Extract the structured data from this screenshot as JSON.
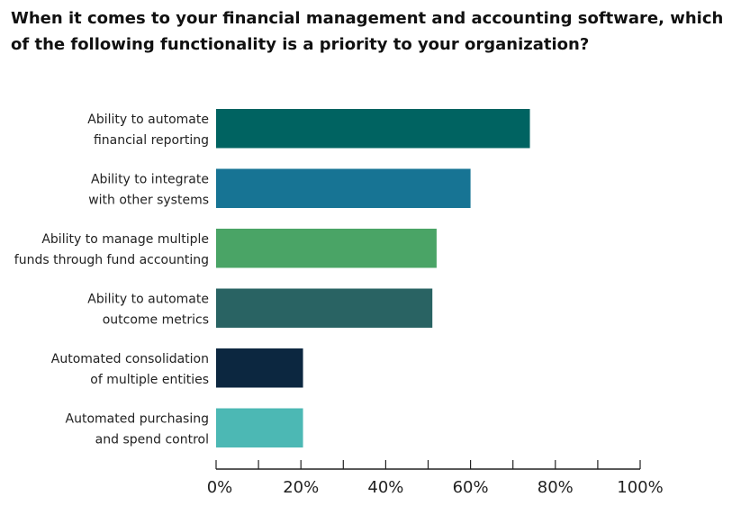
{
  "chart_data": {
    "type": "bar",
    "orientation": "horizontal",
    "title": "When it comes to your financial management and accounting software, which of the following functionality is a priority to your organization?",
    "categories": [
      [
        "Ability to automate",
        "financial reporting"
      ],
      [
        "Ability to integrate",
        "with other systems"
      ],
      [
        "Ability to manage multiple",
        "funds through fund accounting"
      ],
      [
        "Ability to automate",
        "outcome metrics"
      ],
      [
        "Automated consolidation",
        "of multiple entities"
      ],
      [
        "Automated purchasing",
        "and spend control"
      ]
    ],
    "values": [
      74,
      60,
      52,
      51,
      20.5,
      20.5
    ],
    "colors": [
      "#006361",
      "#177494",
      "#4aa466",
      "#296363",
      "#0c2740",
      "#4cb8b4"
    ],
    "xlim": [
      0,
      100
    ],
    "xticks": [
      "0%",
      "20%",
      "40%",
      "60%",
      "80%",
      "100%"
    ],
    "grid": false,
    "legend": "none"
  }
}
